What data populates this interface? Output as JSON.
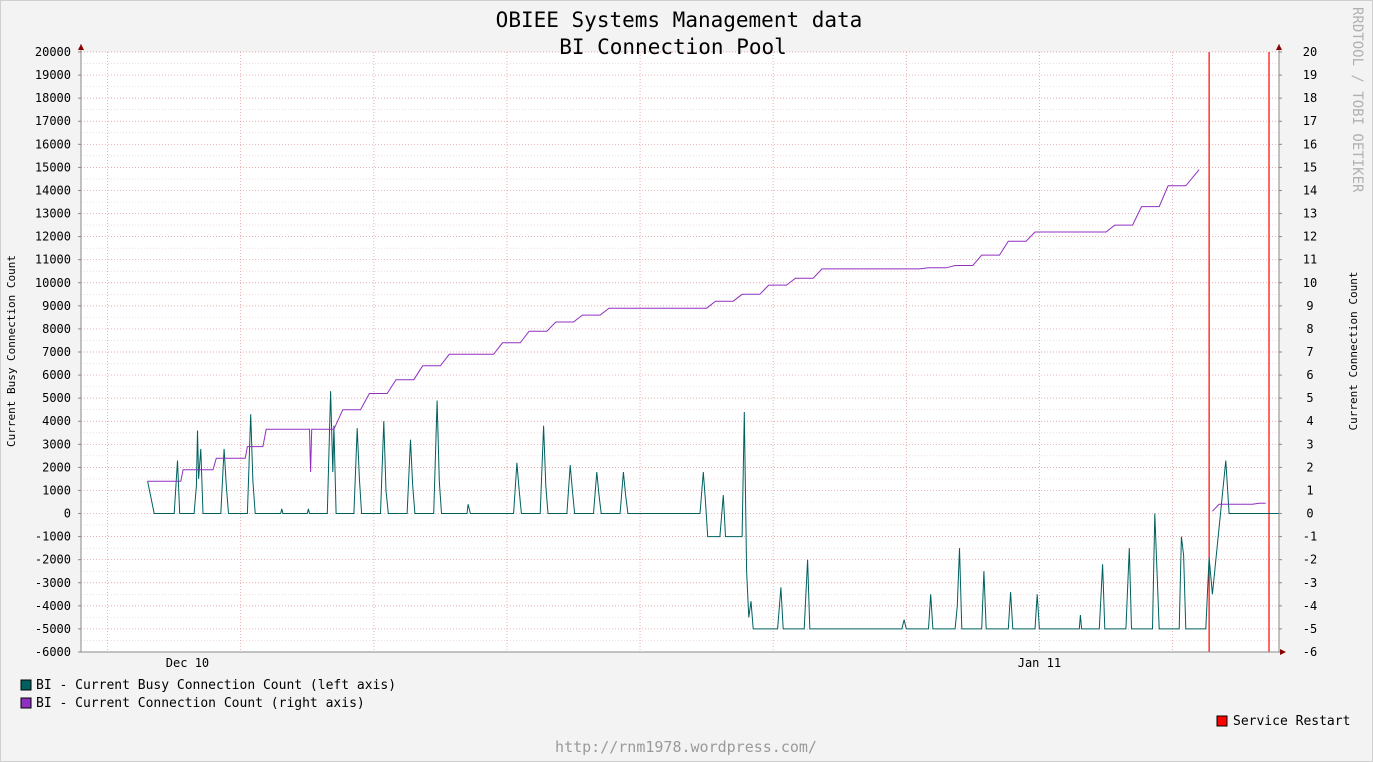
{
  "chart_data": {
    "type": "line",
    "title": "OBIEE Systems Management data",
    "subtitle": "BI Connection Pool",
    "ylabel_left": "Current Busy Connection Count",
    "ylabel_right": "Current Connection Count",
    "ylim_left": [
      -6000,
      20000
    ],
    "ylim_right": [
      -6,
      20
    ],
    "yticks_left": [
      "20000",
      "19000",
      "18000",
      "17000",
      "16000",
      "15000",
      "14000",
      "13000",
      "12000",
      "11000",
      "10000",
      "9000",
      "8000",
      "7000",
      "6000",
      "5000",
      "4000",
      "3000",
      "2000",
      "1000",
      "0",
      "-1000",
      "-2000",
      "-3000",
      "-4000",
      "-5000",
      "-6000"
    ],
    "yticks_right": [
      "20",
      "19",
      "18",
      "17",
      "16",
      "15",
      "14",
      "13",
      "12",
      "11",
      "10",
      "9",
      "8",
      "7",
      "6",
      "5",
      "4",
      "3",
      "2",
      "1",
      "0",
      "-1",
      "-2",
      "-3",
      "-4",
      "-5",
      "-6"
    ],
    "xlim": [
      "2011-12-06",
      "2012-01-20"
    ],
    "xticks": [
      {
        "date": "2011-12-10",
        "label": "Dec 10"
      },
      {
        "date": "2012-01-11",
        "label": "Jan 11"
      }
    ],
    "grid": true,
    "legend_placement": "bottom-left",
    "watermark": "RRDTOOL / TOBI OETIKER",
    "footer": "http://rnm1978.wordpress.com/",
    "series": [
      {
        "name": "BI - Current Busy Connection Count (left axis)",
        "axis": "left",
        "color": "#006060",
        "points": [
          [
            "2011-12-08T12:00",
            1400
          ],
          [
            "2011-12-08T18:00",
            0
          ],
          [
            "2011-12-09T12:00",
            0
          ],
          [
            "2011-12-09T15:00",
            2300
          ],
          [
            "2011-12-09T17:00",
            0
          ],
          [
            "2011-12-10T06:00",
            0
          ],
          [
            "2011-12-10T08:00",
            1200
          ],
          [
            "2011-12-10T09:00",
            3600
          ],
          [
            "2011-12-10T10:00",
            1500
          ],
          [
            "2011-12-10T12:00",
            2800
          ],
          [
            "2011-12-10T14:00",
            0
          ],
          [
            "2011-12-11T06:00",
            0
          ],
          [
            "2011-12-11T09:00",
            2800
          ],
          [
            "2011-12-11T11:00",
            1200
          ],
          [
            "2011-12-11T13:00",
            0
          ],
          [
            "2011-12-12T06:00",
            0
          ],
          [
            "2011-12-12T09:00",
            4300
          ],
          [
            "2011-12-12T11:00",
            1400
          ],
          [
            "2011-12-12T13:00",
            0
          ],
          [
            "2011-12-13T12:00",
            0
          ],
          [
            "2011-12-13T13:00",
            200
          ],
          [
            "2011-12-13T14:00",
            0
          ],
          [
            "2011-12-14T12:00",
            0
          ],
          [
            "2011-12-14T13:00",
            200
          ],
          [
            "2011-12-14T14:00",
            0
          ],
          [
            "2011-12-15T06:00",
            0
          ],
          [
            "2011-12-15T09:00",
            5300
          ],
          [
            "2011-12-15T11:00",
            1800
          ],
          [
            "2011-12-15T12:00",
            3800
          ],
          [
            "2011-12-15T14:00",
            0
          ],
          [
            "2011-12-16T06:00",
            0
          ],
          [
            "2011-12-16T09:00",
            3700
          ],
          [
            "2011-12-16T11:00",
            1500
          ],
          [
            "2011-12-16T13:00",
            0
          ],
          [
            "2011-12-17T06:00",
            0
          ],
          [
            "2011-12-17T09:00",
            4000
          ],
          [
            "2011-12-17T11:00",
            1000
          ],
          [
            "2011-12-17T13:00",
            0
          ],
          [
            "2011-12-18T06:00",
            0
          ],
          [
            "2011-12-18T09:00",
            3200
          ],
          [
            "2011-12-18T11:00",
            1200
          ],
          [
            "2011-12-18T13:00",
            0
          ],
          [
            "2011-12-19T06:00",
            0
          ],
          [
            "2011-12-19T09:00",
            4900
          ],
          [
            "2011-12-19T11:00",
            1400
          ],
          [
            "2011-12-19T13:00",
            0
          ],
          [
            "2011-12-20T12:00",
            0
          ],
          [
            "2011-12-20T13:00",
            400
          ],
          [
            "2011-12-20T15:00",
            0
          ],
          [
            "2011-12-22T06:00",
            0
          ],
          [
            "2011-12-22T09:00",
            2200
          ],
          [
            "2011-12-22T11:00",
            1000
          ],
          [
            "2011-12-22T13:00",
            0
          ],
          [
            "2011-12-23T06:00",
            0
          ],
          [
            "2011-12-23T09:00",
            3800
          ],
          [
            "2011-12-23T11:00",
            1200
          ],
          [
            "2011-12-23T13:00",
            0
          ],
          [
            "2011-12-24T06:00",
            0
          ],
          [
            "2011-12-24T09:00",
            2100
          ],
          [
            "2011-12-24T11:00",
            1000
          ],
          [
            "2011-12-24T13:00",
            0
          ],
          [
            "2011-12-25T06:00",
            0
          ],
          [
            "2011-12-25T09:00",
            1800
          ],
          [
            "2011-12-25T11:00",
            800
          ],
          [
            "2011-12-25T13:00",
            0
          ],
          [
            "2011-12-26T06:00",
            0
          ],
          [
            "2011-12-26T09:00",
            1800
          ],
          [
            "2011-12-26T11:00",
            800
          ],
          [
            "2011-12-26T13:00",
            0
          ],
          [
            "2011-12-29T06:00",
            0
          ],
          [
            "2011-12-29T09:00",
            1800
          ],
          [
            "2011-12-29T11:00",
            500
          ],
          [
            "2011-12-29T13:00",
            -1000
          ],
          [
            "2011-12-30T00:00",
            -1000
          ],
          [
            "2011-12-30T03:00",
            800
          ],
          [
            "2011-12-30T05:00",
            -1000
          ],
          [
            "2011-12-30T20:00",
            -1000
          ],
          [
            "2011-12-30T22:00",
            4400
          ],
          [
            "2011-12-31T00:00",
            -2500
          ],
          [
            "2011-12-31T02:00",
            -4500
          ],
          [
            "2011-12-31T04:00",
            -3800
          ],
          [
            "2011-12-31T06:00",
            -5000
          ],
          [
            "2012-01-01T04:00",
            -5000
          ],
          [
            "2012-01-01T07:00",
            -3200
          ],
          [
            "2012-01-01T09:00",
            -5000
          ],
          [
            "2012-01-02T04:00",
            -5000
          ],
          [
            "2012-01-02T07:00",
            -2000
          ],
          [
            "2012-01-02T09:00",
            -5000
          ],
          [
            "2012-01-05T20:00",
            -5000
          ],
          [
            "2012-01-05T22:00",
            -4600
          ],
          [
            "2012-01-06T00:00",
            -5000
          ],
          [
            "2012-01-06T20:00",
            -5000
          ],
          [
            "2012-01-06T22:00",
            -3500
          ],
          [
            "2012-01-07T00:00",
            -5000
          ],
          [
            "2012-01-07T20:00",
            -5000
          ],
          [
            "2012-01-07T22:00",
            -4000
          ],
          [
            "2012-01-08T00:00",
            -1500
          ],
          [
            "2012-01-08T02:00",
            -5000
          ],
          [
            "2012-01-08T20:00",
            -5000
          ],
          [
            "2012-01-08T22:00",
            -2500
          ],
          [
            "2012-01-09T00:00",
            -5000
          ],
          [
            "2012-01-09T20:00",
            -5000
          ],
          [
            "2012-01-09T22:00",
            -3400
          ],
          [
            "2012-01-10T00:00",
            -5000
          ],
          [
            "2012-01-10T20:00",
            -5000
          ],
          [
            "2012-01-10T22:00",
            -3500
          ],
          [
            "2012-01-11T00:00",
            -5000
          ],
          [
            "2012-01-12T12:00",
            -5000
          ],
          [
            "2012-01-12T13:00",
            -4400
          ],
          [
            "2012-01-12T14:00",
            -5000
          ],
          [
            "2012-01-13T06:00",
            -5000
          ],
          [
            "2012-01-13T09:00",
            -2200
          ],
          [
            "2012-01-13T11:00",
            -5000
          ],
          [
            "2012-01-14T06:00",
            -5000
          ],
          [
            "2012-01-14T09:00",
            -1500
          ],
          [
            "2012-01-14T11:00",
            -5000
          ],
          [
            "2012-01-15T06:00",
            -5000
          ],
          [
            "2012-01-15T08:00",
            0
          ],
          [
            "2012-01-15T10:00",
            -2500
          ],
          [
            "2012-01-15T12:00",
            -5000
          ],
          [
            "2012-01-16T06:00",
            -5000
          ],
          [
            "2012-01-16T08:00",
            -1000
          ],
          [
            "2012-01-16T10:00",
            -1800
          ],
          [
            "2012-01-16T12:00",
            -5000
          ],
          [
            "2012-01-17T06:00",
            -5000
          ],
          [
            "2012-01-17T09:00",
            -1900
          ],
          [
            "2012-01-17T12:00",
            -3500
          ],
          [
            "2012-01-18T00:00",
            2300
          ],
          [
            "2012-01-18T03:00",
            0
          ],
          [
            "2012-01-19T12:00",
            0
          ],
          [
            "2012-01-20T00:00",
            0
          ]
        ]
      },
      {
        "name": "BI - Current Connection Count (right axis)",
        "axis": "right",
        "color": "#9030c0",
        "points": [
          [
            "2011-12-08T12:00",
            1.4
          ],
          [
            "2011-12-09T18:00",
            1.4
          ],
          [
            "2011-12-09T20:00",
            1.9
          ],
          [
            "2011-12-10T23:00",
            1.9
          ],
          [
            "2011-12-11T02:00",
            2.4
          ],
          [
            "2011-12-12T04:00",
            2.4
          ],
          [
            "2011-12-12T06:00",
            2.9
          ],
          [
            "2011-12-12T20:00",
            2.9
          ],
          [
            "2011-12-12T23:00",
            3.65
          ],
          [
            "2011-12-14T14:00",
            3.65
          ],
          [
            "2011-12-14T15:00",
            1.8
          ],
          [
            "2011-12-14T16:00",
            3.65
          ],
          [
            "2011-12-15T12:00",
            3.65
          ],
          [
            "2011-12-15T20:00",
            4.5
          ],
          [
            "2011-12-16T12:00",
            4.5
          ],
          [
            "2011-12-16T20:00",
            5.2
          ],
          [
            "2011-12-17T12:00",
            5.2
          ],
          [
            "2011-12-17T20:00",
            5.8
          ],
          [
            "2011-12-18T12:00",
            5.8
          ],
          [
            "2011-12-18T20:00",
            6.4
          ],
          [
            "2011-12-19T12:00",
            6.4
          ],
          [
            "2011-12-19T20:00",
            6.9
          ],
          [
            "2011-12-21T12:00",
            6.9
          ],
          [
            "2011-12-21T20:00",
            7.4
          ],
          [
            "2011-12-22T12:00",
            7.4
          ],
          [
            "2011-12-22T20:00",
            7.9
          ],
          [
            "2011-12-23T12:00",
            7.9
          ],
          [
            "2011-12-23T20:00",
            8.3
          ],
          [
            "2011-12-24T12:00",
            8.3
          ],
          [
            "2011-12-24T20:00",
            8.6
          ],
          [
            "2011-12-25T12:00",
            8.6
          ],
          [
            "2011-12-25T20:00",
            8.9
          ],
          [
            "2011-12-29T12:00",
            8.9
          ],
          [
            "2011-12-29T20:00",
            9.2
          ],
          [
            "2011-12-30T12:00",
            9.2
          ],
          [
            "2011-12-30T20:00",
            9.5
          ],
          [
            "2011-12-31T12:00",
            9.5
          ],
          [
            "2011-12-31T20:00",
            9.9
          ],
          [
            "2012-01-01T12:00",
            9.9
          ],
          [
            "2012-01-01T20:00",
            10.2
          ],
          [
            "2012-01-02T12:00",
            10.2
          ],
          [
            "2012-01-02T20:00",
            10.6
          ],
          [
            "2012-01-06T12:00",
            10.6
          ],
          [
            "2012-01-06T20:00",
            10.65
          ],
          [
            "2012-01-07T12:00",
            10.65
          ],
          [
            "2012-01-07T20:00",
            10.75
          ],
          [
            "2012-01-08T12:00",
            10.75
          ],
          [
            "2012-01-08T20:00",
            11.2
          ],
          [
            "2012-01-09T12:00",
            11.2
          ],
          [
            "2012-01-09T20:00",
            11.8
          ],
          [
            "2012-01-10T12:00",
            11.8
          ],
          [
            "2012-01-10T20:00",
            12.2
          ],
          [
            "2012-01-13T12:00",
            12.2
          ],
          [
            "2012-01-13T20:00",
            12.5
          ],
          [
            "2012-01-14T12:00",
            12.5
          ],
          [
            "2012-01-14T20:00",
            13.3
          ],
          [
            "2012-01-15T12:00",
            13.3
          ],
          [
            "2012-01-15T20:00",
            14.2
          ],
          [
            "2012-01-16T12:00",
            14.2
          ],
          [
            "2012-01-17T00:00",
            14.9
          ],
          [
            "2012-01-17T12:00",
            0.1
          ],
          [
            "2012-01-17T18:00",
            0.4
          ],
          [
            "2012-01-19T00:00",
            0.4
          ],
          [
            "2012-01-19T06:00",
            0.45
          ],
          [
            "2012-01-19T12:00",
            0.45
          ]
        ]
      }
    ],
    "events": [
      {
        "name": "Service Restart",
        "color": "#ff0000",
        "dates": [
          "2012-01-17T09:00",
          "2012-01-19T15:00"
        ]
      }
    ],
    "legend_event_label": "Service Restart"
  }
}
